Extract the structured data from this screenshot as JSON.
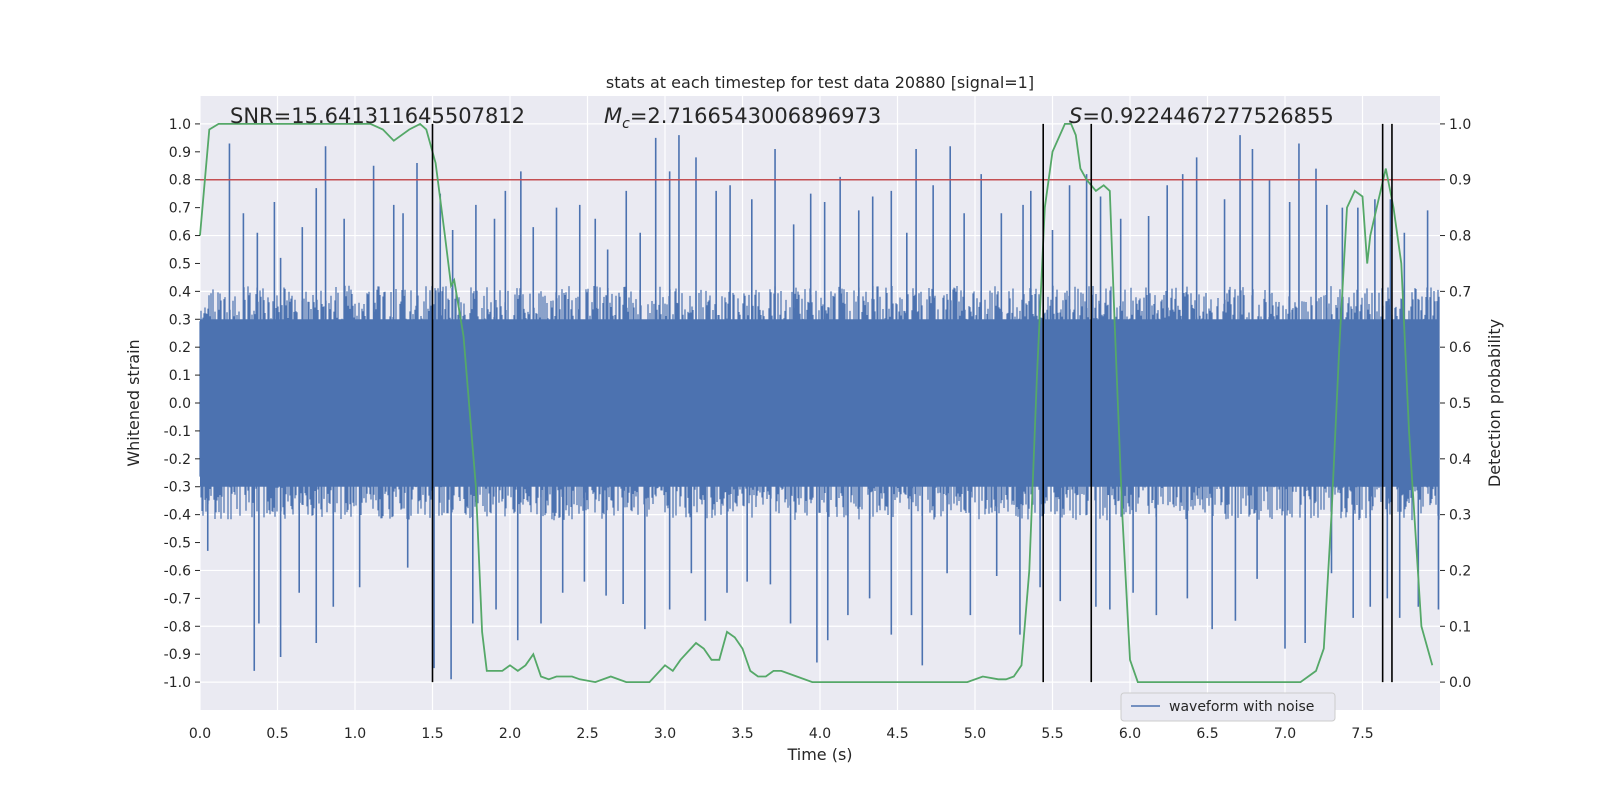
{
  "chart_data": {
    "type": "line",
    "title": "stats at each timestep for test data 20880 [signal=1]",
    "xlabel": "Time (s)",
    "ylabel": "Whitened strain",
    "y2label": "Detection probability",
    "xlim": [
      0.0,
      8.0
    ],
    "ylim": [
      -1.1,
      1.1
    ],
    "y2lim": [
      -0.05,
      1.05
    ],
    "xticks": [
      "0.0",
      "0.5",
      "1.0",
      "1.5",
      "2.0",
      "2.5",
      "3.0",
      "3.5",
      "4.0",
      "4.5",
      "5.0",
      "5.5",
      "6.0",
      "6.5",
      "7.0",
      "7.5"
    ],
    "yticks": [
      "1.0",
      "0.9",
      "0.8",
      "0.7",
      "0.6",
      "0.5",
      "0.4",
      "0.3",
      "0.2",
      "0.1",
      "0.0",
      "-0.1",
      "-0.2",
      "-0.3",
      "-0.4",
      "-0.5",
      "-0.6",
      "-0.7",
      "-0.8",
      "-0.9",
      "-1.0"
    ],
    "y2ticks": [
      "1.0",
      "0.9",
      "0.8",
      "0.7",
      "0.6",
      "0.5",
      "0.4",
      "0.3",
      "0.2",
      "0.1",
      "0.0"
    ],
    "annotations": {
      "snr": "SNR=15.641311645507812",
      "mc_symbol": "M",
      "mc_sub": "c",
      "mc_value": "=2.7166543006896973",
      "s_symbol": "S",
      "s_value": "=0.9224467277526855"
    },
    "legend": {
      "label": "waveform with noise",
      "placement": "lower-right"
    },
    "threshold": {
      "axis": "y2",
      "value": 0.9,
      "color": "#c44e52"
    },
    "vertical_markers": [
      1.5,
      5.44,
      5.75,
      7.63,
      7.69
    ],
    "strain_series": {
      "name": "waveform with noise",
      "color": "#4c72b0",
      "typical_envelope": 0.42,
      "peak_times": [
        0.19,
        0.28,
        0.37,
        0.48,
        0.52,
        0.66,
        0.75,
        0.81,
        0.93,
        1.12,
        1.25,
        1.31,
        1.4,
        1.55,
        1.63,
        1.78,
        1.9,
        1.97,
        2.07,
        2.15,
        2.3,
        2.45,
        2.55,
        2.63,
        2.75,
        2.84,
        2.94,
        3.03,
        3.09,
        3.2,
        3.33,
        3.42,
        3.56,
        3.71,
        3.83,
        3.94,
        4.03,
        4.13,
        4.25,
        4.34,
        4.46,
        4.56,
        4.62,
        4.73,
        4.84,
        4.93,
        5.04,
        5.17,
        5.31,
        5.36,
        5.5,
        5.61,
        5.72,
        5.81,
        5.94,
        6.12,
        6.24,
        6.34,
        6.43,
        6.61,
        6.71,
        6.79,
        6.9,
        7.03,
        7.09,
        7.2,
        7.27,
        7.37,
        7.47,
        7.58,
        7.68,
        7.77,
        7.92
      ],
      "peak_values": [
        0.93,
        0.68,
        0.61,
        0.72,
        0.52,
        0.63,
        0.77,
        0.92,
        0.66,
        0.85,
        0.71,
        0.68,
        0.86,
        0.75,
        0.62,
        0.71,
        0.66,
        0.76,
        0.83,
        0.63,
        0.7,
        0.71,
        0.66,
        0.55,
        0.76,
        0.61,
        0.95,
        0.83,
        0.96,
        0.88,
        0.76,
        0.78,
        0.73,
        0.91,
        0.64,
        0.75,
        0.72,
        0.81,
        0.69,
        0.74,
        0.76,
        0.61,
        0.91,
        0.78,
        0.92,
        0.68,
        0.82,
        0.68,
        0.71,
        0.76,
        0.62,
        0.78,
        0.82,
        0.74,
        0.66,
        0.67,
        0.78,
        0.82,
        0.88,
        0.73,
        0.96,
        0.91,
        0.8,
        0.72,
        0.93,
        0.84,
        0.71,
        0.7,
        0.7,
        0.73,
        0.73,
        0.61,
        0.69
      ],
      "trough_times": [
        0.05,
        0.35,
        0.38,
        0.52,
        0.64,
        0.75,
        0.86,
        1.03,
        1.34,
        1.51,
        1.62,
        1.76,
        1.91,
        2.05,
        2.2,
        2.34,
        2.48,
        2.62,
        2.73,
        2.87,
        3.03,
        3.17,
        3.26,
        3.4,
        3.53,
        3.68,
        3.81,
        3.98,
        4.05,
        4.18,
        4.32,
        4.46,
        4.59,
        4.66,
        4.82,
        4.97,
        5.14,
        5.29,
        5.42,
        5.55,
        5.78,
        5.87,
        6.02,
        6.17,
        6.37,
        6.53,
        6.68,
        6.82,
        7.0,
        7.13,
        7.3,
        7.44,
        7.55,
        7.66,
        7.74,
        7.86,
        7.99
      ],
      "trough_values": [
        -0.53,
        -0.96,
        -0.79,
        -0.91,
        -0.68,
        -0.86,
        -0.73,
        -0.66,
        -0.59,
        -0.95,
        -0.99,
        -0.79,
        -0.74,
        -0.85,
        -0.79,
        -0.68,
        -0.64,
        -0.69,
        -0.72,
        -0.81,
        -0.74,
        -0.61,
        -0.78,
        -0.68,
        -0.64,
        -0.65,
        -0.79,
        -0.93,
        -0.85,
        -0.76,
        -0.7,
        -0.83,
        -0.76,
        -0.94,
        -0.61,
        -0.76,
        -0.62,
        -0.83,
        -0.66,
        -0.71,
        -0.73,
        -0.74,
        -0.68,
        -0.76,
        -0.7,
        -0.81,
        -0.78,
        -0.63,
        -0.88,
        -0.86,
        -0.61,
        -0.77,
        -0.73,
        -0.7,
        -0.77,
        -0.73,
        -0.74
      ]
    },
    "probability_series": {
      "name": "detection probability",
      "color": "#55a868",
      "x": [
        0.0,
        0.06,
        0.12,
        0.2,
        0.3,
        0.5,
        0.7,
        0.9,
        1.0,
        1.1,
        1.18,
        1.25,
        1.35,
        1.42,
        1.46,
        1.52,
        1.58,
        1.62,
        1.64,
        1.7,
        1.75,
        1.78,
        1.82,
        1.85,
        1.9,
        1.95,
        2.0,
        2.05,
        2.1,
        2.15,
        2.2,
        2.25,
        2.3,
        2.4,
        2.45,
        2.55,
        2.65,
        2.75,
        2.8,
        2.9,
        3.0,
        3.05,
        3.1,
        3.2,
        3.25,
        3.3,
        3.35,
        3.4,
        3.45,
        3.5,
        3.55,
        3.6,
        3.65,
        3.7,
        3.75,
        3.85,
        3.95,
        4.05,
        4.2,
        4.35,
        4.5,
        4.7,
        4.85,
        4.95,
        5.05,
        5.15,
        5.2,
        5.25,
        5.3,
        5.35,
        5.4,
        5.45,
        5.5,
        5.58,
        5.62,
        5.65,
        5.68,
        5.72,
        5.78,
        5.83,
        5.87,
        5.9,
        5.95,
        6.0,
        6.05,
        6.1,
        6.3,
        6.5,
        6.7,
        6.9,
        7.1,
        7.2,
        7.25,
        7.3,
        7.35,
        7.4,
        7.45,
        7.5,
        7.53,
        7.55,
        7.6,
        7.65,
        7.7,
        7.75,
        7.8,
        7.88,
        7.95
      ],
      "y": [
        0.8,
        0.99,
        1.0,
        1.0,
        1.0,
        1.0,
        1.0,
        1.0,
        1.0,
        1.0,
        0.99,
        0.97,
        0.99,
        1.0,
        0.99,
        0.93,
        0.8,
        0.71,
        0.72,
        0.62,
        0.45,
        0.35,
        0.09,
        0.02,
        0.02,
        0.02,
        0.03,
        0.02,
        0.03,
        0.05,
        0.01,
        0.005,
        0.01,
        0.01,
        0.005,
        0.0,
        0.01,
        0.0,
        0.0,
        0.0,
        0.03,
        0.02,
        0.04,
        0.07,
        0.06,
        0.04,
        0.04,
        0.09,
        0.08,
        0.06,
        0.02,
        0.01,
        0.01,
        0.02,
        0.02,
        0.01,
        0.0,
        0.0,
        0.0,
        0.0,
        0.0,
        0.0,
        0.0,
        0.0,
        0.01,
        0.005,
        0.005,
        0.01,
        0.03,
        0.2,
        0.55,
        0.85,
        0.95,
        1.0,
        1.0,
        0.98,
        0.92,
        0.9,
        0.88,
        0.89,
        0.88,
        0.65,
        0.3,
        0.04,
        0.0,
        0.0,
        0.0,
        0.0,
        0.0,
        0.0,
        0.0,
        0.02,
        0.06,
        0.3,
        0.6,
        0.85,
        0.88,
        0.87,
        0.75,
        0.8,
        0.86,
        0.92,
        0.85,
        0.75,
        0.45,
        0.1,
        0.03
      ]
    }
  }
}
